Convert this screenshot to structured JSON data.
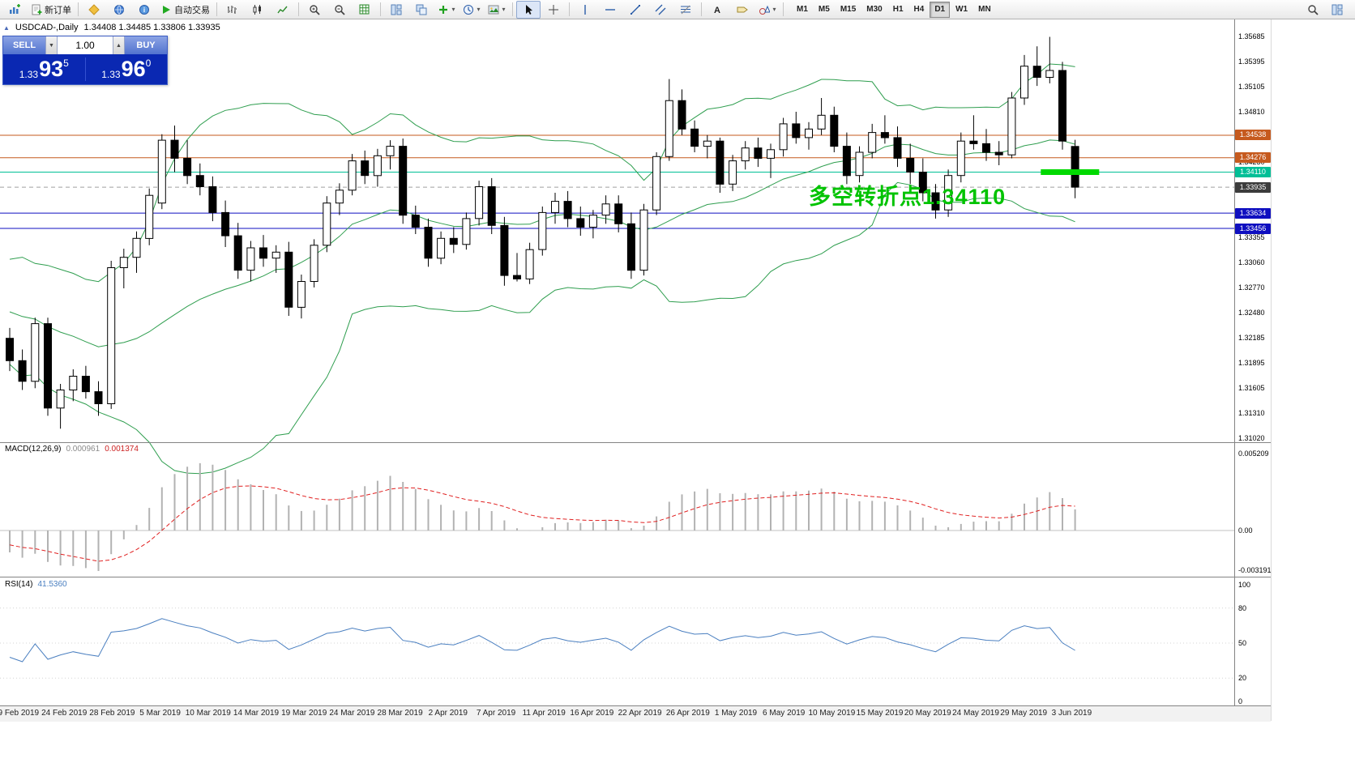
{
  "window": {
    "symbol_period": "USDCAD-,Daily",
    "ohlc": "1.34408 1.34485 1.33806 1.33935",
    "collapse_glyph": "▲"
  },
  "toolbar": {
    "caret_glyph": "▾",
    "items": [
      {
        "name": "new-chart",
        "icon": "chartplus"
      },
      {
        "name": "new-order",
        "icon": "order",
        "label": "新订单"
      },
      {
        "sep": true
      },
      {
        "name": "metaeditor",
        "icon": "diamond"
      },
      {
        "name": "market-watch",
        "icon": "globe"
      },
      {
        "name": "data-window",
        "icon": "info"
      },
      {
        "name": "auto-trading",
        "icon": "play",
        "label": "自动交易"
      },
      {
        "sep": true
      },
      {
        "name": "bar-chart",
        "icon": "bars"
      },
      {
        "name": "candlestick-chart",
        "icon": "candles"
      },
      {
        "name": "line-chart",
        "icon": "linechart"
      },
      {
        "sep": true
      },
      {
        "name": "zoom-in",
        "icon": "magplus"
      },
      {
        "name": "zoom-out",
        "icon": "magminus"
      },
      {
        "name": "grid",
        "icon": "grid"
      },
      {
        "sep": true
      },
      {
        "name": "tile-windows",
        "icon": "tile"
      },
      {
        "name": "cascade-windows",
        "icon": "cascade"
      },
      {
        "name": "indicators",
        "icon": "plus",
        "caret": true
      },
      {
        "name": "periods",
        "icon": "clock",
        "caret": true
      },
      {
        "name": "templates",
        "icon": "photo",
        "caret": true
      },
      {
        "sep": true
      },
      {
        "name": "cursor",
        "icon": "cursor",
        "active": true
      },
      {
        "name": "crosshair",
        "icon": "cross"
      },
      {
        "sep": true
      },
      {
        "name": "vertical-line",
        "icon": "vline"
      },
      {
        "name": "horizontal-line",
        "icon": "hline"
      },
      {
        "name": "trendline",
        "icon": "trend"
      },
      {
        "name": "equidistant-channel",
        "icon": "channel"
      },
      {
        "name": "fibonacci-retracement",
        "icon": "fibo"
      },
      {
        "sep": true
      },
      {
        "name": "text",
        "icon": "textA"
      },
      {
        "name": "text-label",
        "icon": "label"
      },
      {
        "name": "arrows",
        "icon": "shapes",
        "caret": true
      },
      {
        "sep": true
      }
    ],
    "timeframes": [
      "M1",
      "M5",
      "M15",
      "M30",
      "H1",
      "H4",
      "D1",
      "W1",
      "MN"
    ],
    "active_timeframe": "D1",
    "right_items": [
      {
        "name": "quick-search",
        "icon": "mag"
      },
      {
        "name": "chart-window",
        "icon": "tile"
      }
    ]
  },
  "trade_panel": {
    "sell_label": "SELL",
    "buy_label": "BUY",
    "volume": "1.00",
    "volume_down_glyph": "▼",
    "volume_up_glyph": "▲",
    "sell_price": {
      "prefix": "1.33",
      "big": "93",
      "sup": "5"
    },
    "buy_price": {
      "prefix": "1.33",
      "big": "96",
      "sup": "0"
    }
  },
  "annotation": {
    "text": "多空转折点1.34110",
    "color": "#00c300"
  },
  "highlight_segment": {
    "price": 1.3411,
    "color": "#00d900",
    "bar_start": 81.3,
    "bar_end": 85.9,
    "thickness": 7
  },
  "hlines": [
    {
      "price": 1.34538,
      "color": "#c65a1e",
      "style": "solid"
    },
    {
      "price": 1.34276,
      "color": "#c65a1e",
      "style": "solid"
    },
    {
      "price": 1.3411,
      "color": "#00bf96",
      "style": "solid"
    },
    {
      "price": 1.33935,
      "color": "#a0a0a0",
      "style": "dash"
    },
    {
      "price": 1.33634,
      "color": "#0f0fc0",
      "style": "solid"
    },
    {
      "price": 1.33456,
      "color": "#0f0fc0",
      "style": "solid"
    }
  ],
  "price_scale": {
    "labels": [
      "1.35685",
      "1.35395",
      "1.35105",
      "1.34810",
      "1.34520",
      "1.34230",
      "1.33940",
      "1.33645",
      "1.33355",
      "1.33060",
      "1.32770",
      "1.32480",
      "1.32185",
      "1.31895",
      "1.31605",
      "1.31310",
      "1.31020"
    ],
    "badges": [
      {
        "value": "1.34538",
        "color": "#c65a1e"
      },
      {
        "value": "1.34276",
        "color": "#c65a1e"
      },
      {
        "value": "1.34110",
        "color": "#00bf96"
      },
      {
        "value": "1.33935",
        "color": "#3c3c3c"
      },
      {
        "value": "1.33634",
        "color": "#0f0fc0"
      },
      {
        "value": "1.33456",
        "color": "#0f0fc0"
      }
    ]
  },
  "macd_panel": {
    "label": "MACD(12,26,9)",
    "value_main": "0.000961",
    "value_signal": "0.001374",
    "scale": [
      "0.005209",
      "0.00",
      "-0.003191"
    ]
  },
  "rsi_panel": {
    "label": "RSI(14)",
    "value": "41.5360",
    "scale": [
      "100",
      "80",
      "50",
      "20",
      "0"
    ]
  },
  "date_axis": {
    "labels": [
      "19 Feb 2019",
      "24 Feb 2019",
      "28 Feb 2019",
      "5 Mar 2019",
      "10 Mar 2019",
      "14 Mar 2019",
      "19 Mar 2019",
      "24 Mar 2019",
      "28 Mar 2019",
      "2 Apr 2019",
      "7 Apr 2019",
      "11 Apr 2019",
      "16 Apr 2019",
      "22 Apr 2019",
      "26 Apr 2019",
      "1 May 2019",
      "6 May 2019",
      "10 May 2019",
      "15 May 2019",
      "20 May 2019",
      "24 May 2019",
      "29 May 2019",
      "3 Jun 2019"
    ]
  },
  "chart_data": {
    "type": "candlestick",
    "symbol": "USDCAD-",
    "timeframe": "Daily",
    "title": "USDCAD-,Daily",
    "ohlc_current": {
      "open": 1.34408,
      "high": 1.34485,
      "low": 1.33806,
      "close": 1.33935
    },
    "y_range_visible": [
      1.3102,
      1.35685
    ],
    "indicators": {
      "bollinger": {
        "period": 20,
        "deviation": 2,
        "color": "#2f9e4f"
      },
      "macd": {
        "fast": 12,
        "slow": 26,
        "signal": 9,
        "value": 0.000961,
        "signal_value": 0.001374
      },
      "rsi": {
        "period": 14,
        "value": 41.536
      }
    },
    "history_closes": [
      1.3262,
      1.3278,
      1.3295,
      1.331,
      1.3288,
      1.327,
      1.3282,
      1.326,
      1.3248,
      1.3265,
      1.324,
      1.3228,
      1.3244,
      1.3232,
      1.3216,
      1.323,
      1.3242,
      1.3225,
      1.321,
      1.322
    ],
    "candles": [
      [
        1.3218,
        1.323,
        1.318,
        1.3192
      ],
      [
        1.3192,
        1.3205,
        1.3158,
        1.3168
      ],
      [
        1.3168,
        1.3242,
        1.316,
        1.3235
      ],
      [
        1.3235,
        1.3242,
        1.3128,
        1.3137
      ],
      [
        1.3137,
        1.3165,
        1.3113,
        1.3158
      ],
      [
        1.3158,
        1.3182,
        1.3145,
        1.3174
      ],
      [
        1.3174,
        1.3186,
        1.3148,
        1.3156
      ],
      [
        1.3156,
        1.3168,
        1.3128,
        1.3142
      ],
      [
        1.3142,
        1.3308,
        1.3136,
        1.33
      ],
      [
        1.33,
        1.3322,
        1.3276,
        1.3312
      ],
      [
        1.3312,
        1.3342,
        1.3294,
        1.3334
      ],
      [
        1.3334,
        1.3392,
        1.3326,
        1.3384
      ],
      [
        1.3375,
        1.3455,
        1.3368,
        1.3448
      ],
      [
        1.3448,
        1.3465,
        1.3411,
        1.3427
      ],
      [
        1.3427,
        1.3448,
        1.3397,
        1.3407
      ],
      [
        1.3407,
        1.3421,
        1.3384,
        1.3394
      ],
      [
        1.3394,
        1.3406,
        1.3354,
        1.3364
      ],
      [
        1.3364,
        1.3378,
        1.3324,
        1.3337
      ],
      [
        1.3337,
        1.3352,
        1.3287,
        1.3297
      ],
      [
        1.3297,
        1.3331,
        1.3284,
        1.3323
      ],
      [
        1.3323,
        1.3338,
        1.3301,
        1.3311
      ],
      [
        1.3311,
        1.3326,
        1.3294,
        1.3318
      ],
      [
        1.3318,
        1.333,
        1.3244,
        1.3254
      ],
      [
        1.3254,
        1.3292,
        1.3241,
        1.3284
      ],
      [
        1.3284,
        1.3333,
        1.3277,
        1.3326
      ],
      [
        1.3326,
        1.3383,
        1.3318,
        1.3375
      ],
      [
        1.3375,
        1.3398,
        1.3361,
        1.339
      ],
      [
        1.339,
        1.3432,
        1.3384,
        1.3424
      ],
      [
        1.3424,
        1.3436,
        1.3397,
        1.3407
      ],
      [
        1.3407,
        1.3438,
        1.3394,
        1.343
      ],
      [
        1.343,
        1.3448,
        1.3414,
        1.3441
      ],
      [
        1.3441,
        1.345,
        1.3351,
        1.3361
      ],
      [
        1.3361,
        1.3372,
        1.3339,
        1.3347
      ],
      [
        1.3347,
        1.3357,
        1.3301,
        1.3311
      ],
      [
        1.3311,
        1.3342,
        1.3304,
        1.3334
      ],
      [
        1.3334,
        1.3347,
        1.3317,
        1.3327
      ],
      [
        1.3327,
        1.3364,
        1.3321,
        1.3357
      ],
      [
        1.3357,
        1.3401,
        1.3349,
        1.3394
      ],
      [
        1.3394,
        1.3404,
        1.3339,
        1.3349
      ],
      [
        1.3349,
        1.3359,
        1.3279,
        1.3291
      ],
      [
        1.3291,
        1.3317,
        1.3284,
        1.3287
      ],
      [
        1.3287,
        1.3329,
        1.3281,
        1.3321
      ],
      [
        1.3321,
        1.3371,
        1.3314,
        1.3364
      ],
      [
        1.3364,
        1.3387,
        1.3351,
        1.3377
      ],
      [
        1.3377,
        1.3389,
        1.3347,
        1.3357
      ],
      [
        1.3357,
        1.3371,
        1.3337,
        1.3347
      ],
      [
        1.3347,
        1.3367,
        1.3334,
        1.3361
      ],
      [
        1.3361,
        1.3384,
        1.3351,
        1.3374
      ],
      [
        1.3374,
        1.3384,
        1.3341,
        1.3351
      ],
      [
        1.3351,
        1.3364,
        1.3287,
        1.3297
      ],
      [
        1.3297,
        1.3374,
        1.3291,
        1.3367
      ],
      [
        1.3367,
        1.3434,
        1.3361,
        1.3429
      ],
      [
        1.3429,
        1.3519,
        1.3424,
        1.3494
      ],
      [
        1.3494,
        1.3507,
        1.3454,
        1.3461
      ],
      [
        1.3461,
        1.3471,
        1.3434,
        1.3441
      ],
      [
        1.3441,
        1.3454,
        1.3427,
        1.3447
      ],
      [
        1.3447,
        1.3451,
        1.3387,
        1.3397
      ],
      [
        1.3397,
        1.3431,
        1.3389,
        1.3424
      ],
      [
        1.3424,
        1.3447,
        1.3414,
        1.3439
      ],
      [
        1.3439,
        1.3451,
        1.3417,
        1.3427
      ],
      [
        1.3427,
        1.3444,
        1.3404,
        1.3437
      ],
      [
        1.3437,
        1.3474,
        1.3429,
        1.3467
      ],
      [
        1.3467,
        1.3481,
        1.3444,
        1.3451
      ],
      [
        1.3451,
        1.3469,
        1.3437,
        1.3461
      ],
      [
        1.3461,
        1.3497,
        1.3454,
        1.3477
      ],
      [
        1.3477,
        1.3487,
        1.3434,
        1.3441
      ],
      [
        1.3441,
        1.3457,
        1.3397,
        1.3407
      ],
      [
        1.3407,
        1.3441,
        1.3399,
        1.3434
      ],
      [
        1.3434,
        1.3467,
        1.3427,
        1.3457
      ],
      [
        1.3457,
        1.3477,
        1.3444,
        1.3451
      ],
      [
        1.3451,
        1.3464,
        1.3417,
        1.3427
      ],
      [
        1.3427,
        1.3444,
        1.3397,
        1.3411
      ],
      [
        1.3411,
        1.3427,
        1.3377,
        1.3387
      ],
      [
        1.3387,
        1.3397,
        1.3357,
        1.3367
      ],
      [
        1.3367,
        1.3414,
        1.3359,
        1.3407
      ],
      [
        1.3407,
        1.3457,
        1.3399,
        1.3447
      ],
      [
        1.3447,
        1.3477,
        1.3437,
        1.3444
      ],
      [
        1.3444,
        1.3461,
        1.3424,
        1.3434
      ],
      [
        1.3434,
        1.3447,
        1.3419,
        1.3431
      ],
      [
        1.3431,
        1.3504,
        1.3427,
        1.3497
      ],
      [
        1.3497,
        1.3547,
        1.3489,
        1.3534
      ],
      [
        1.3534,
        1.3557,
        1.3511,
        1.3521
      ],
      [
        1.3521,
        1.3568,
        1.3514,
        1.3529
      ],
      [
        1.3529,
        1.3539,
        1.3437,
        1.3447
      ],
      [
        1.34408,
        1.34485,
        1.33806,
        1.33935
      ]
    ]
  }
}
